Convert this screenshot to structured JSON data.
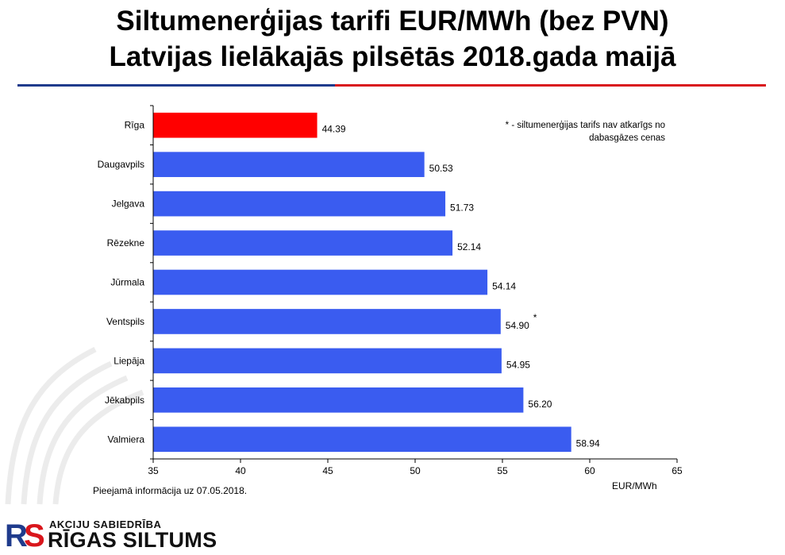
{
  "header": {
    "title_line1": "Siltumenerģijas tarifi EUR/MWh (bez PVN)",
    "title_line2": "Latvijas lielākajās pilsētās 2018.gada maijā"
  },
  "note": "* - siltumenerģijas tarifs nav atkarīgs no dabasgāzes cenas",
  "source": "Pieejamā informācija uz 07.05.2018.",
  "logo": {
    "subtitle": "AKCIJU SABIEDRĪBA",
    "name": "RĪGAS SILTUMS"
  },
  "colors": {
    "highlight": "#ff0000",
    "bar": "#3a5cf0",
    "rule_blue": "#1f3b8c",
    "rule_red": "#d9161c"
  },
  "chart_data": {
    "type": "bar",
    "orientation": "horizontal",
    "categories": [
      "Rīga",
      "Daugavpils",
      "Jelgava",
      "Rēzekne",
      "Jūrmala",
      "Ventspils",
      "Liepāja",
      "Jēkabpils",
      "Valmiera"
    ],
    "values": [
      44.39,
      50.53,
      51.73,
      52.14,
      54.14,
      54.9,
      54.95,
      56.2,
      58.94
    ],
    "value_labels": [
      "44.39",
      "50.53",
      "51.73",
      "52.14",
      "54.14",
      "54.90",
      "54.95",
      "56.20",
      "58.94"
    ],
    "highlight_index": 0,
    "marked_index": 5,
    "marker": "*",
    "xlabel": "EUR/MWh",
    "xlim": [
      35,
      65
    ],
    "xticks": [
      "35",
      "40",
      "45",
      "50",
      "55",
      "60",
      "65"
    ],
    "grid": false
  }
}
